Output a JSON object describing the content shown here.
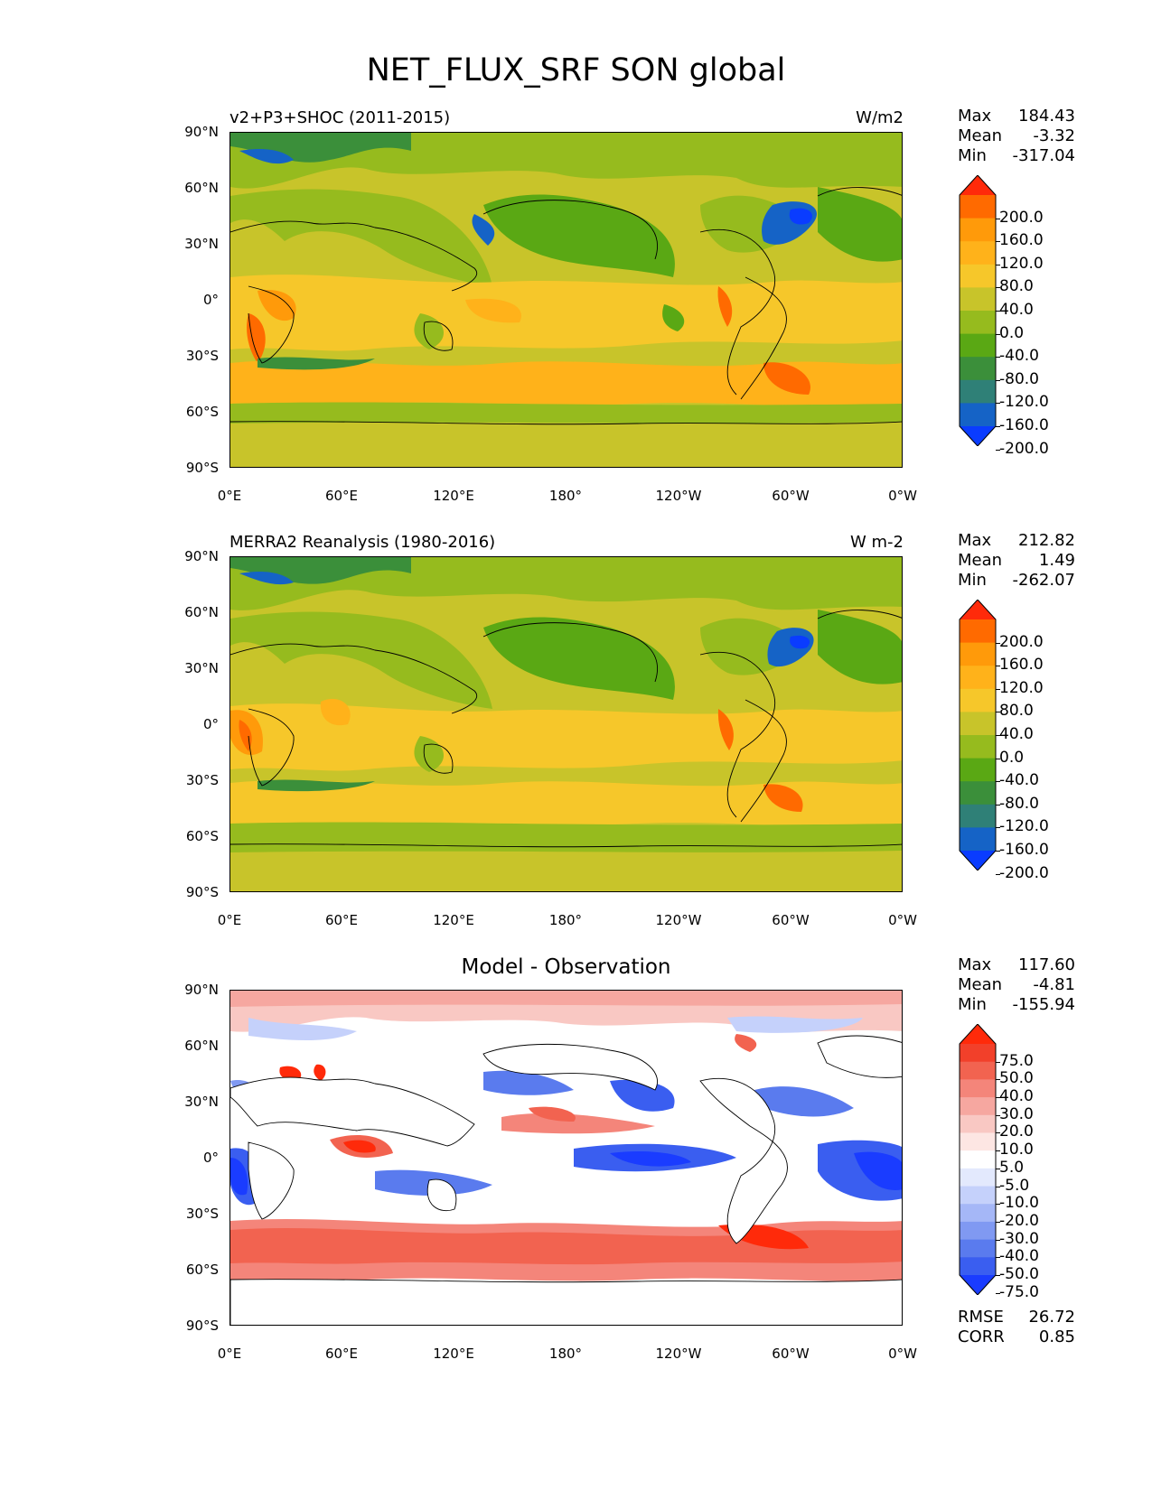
{
  "title": "NET_FLUX_SRF SON global",
  "axes": {
    "y_ticks": [
      "90°N",
      "60°N",
      "30°N",
      "0°",
      "30°S",
      "60°S",
      "90°S"
    ],
    "x_ticks": [
      "0°E",
      "60°E",
      "120°E",
      "180°",
      "120°W",
      "60°W",
      "0°W"
    ]
  },
  "panels": [
    {
      "title": "v2+P3+SHOC (2011-2015)",
      "units": "W/m2",
      "stats": {
        "max_label": "Max",
        "max": "184.43",
        "mean_label": "Mean",
        "mean": "-3.32",
        "min_label": "Min",
        "min": "-317.04"
      },
      "colorbar": {
        "labels": [
          "200.0",
          "160.0",
          "120.0",
          "80.0",
          "40.0",
          "0.0",
          "-40.0",
          "-80.0",
          "-120.0",
          "-160.0",
          "-200.0"
        ],
        "colors": [
          "#ff2a0a",
          "#ff6a00",
          "#ff9a0a",
          "#ffb21a",
          "#f6c72a",
          "#c8c42a",
          "#96bb1e",
          "#5aa814",
          "#3b8f3a",
          "#2f8077",
          "#1563c6",
          "#0a3cff"
        ]
      }
    },
    {
      "title": "MERRA2 Reanalysis (1980-2016)",
      "units": "W m-2",
      "stats": {
        "max_label": "Max",
        "max": "212.82",
        "mean_label": "Mean",
        "mean": "1.49",
        "min_label": "Min",
        "min": "-262.07"
      },
      "colorbar": {
        "labels": [
          "200.0",
          "160.0",
          "120.0",
          "80.0",
          "40.0",
          "0.0",
          "-40.0",
          "-80.0",
          "-120.0",
          "-160.0",
          "-200.0"
        ],
        "colors": [
          "#ff2a0a",
          "#ff6a00",
          "#ff9a0a",
          "#ffb21a",
          "#f6c72a",
          "#c8c42a",
          "#96bb1e",
          "#5aa814",
          "#3b8f3a",
          "#2f8077",
          "#1563c6",
          "#0a3cff"
        ]
      }
    },
    {
      "title": "Model - Observation",
      "units": "",
      "stats": {
        "max_label": "Max",
        "max": "117.60",
        "mean_label": "Mean",
        "mean": "-4.81",
        "min_label": "Min",
        "min": "-155.94"
      },
      "colorbar": {
        "labels": [
          "75.0",
          "50.0",
          "40.0",
          "30.0",
          "20.0",
          "10.0",
          "5.0",
          "-5.0",
          "-10.0",
          "-20.0",
          "-30.0",
          "-40.0",
          "-50.0",
          "-75.0"
        ],
        "colors": [
          "#ff2a0a",
          "#f2402a",
          "#f26350",
          "#f4857a",
          "#f6a7a0",
          "#f9c8c3",
          "#fde6e3",
          "#ffffff",
          "#e3e9fd",
          "#c5d1fb",
          "#a5b7f7",
          "#8099f2",
          "#5a7bee",
          "#3a5ef0",
          "#1a3cff"
        ]
      },
      "metrics": {
        "rmse_label": "RMSE",
        "rmse": "26.72",
        "corr_label": "CORR",
        "corr": "0.85"
      }
    }
  ],
  "chart_data": [
    {
      "type": "heatmap",
      "title": "v2+P3+SHOC (2011-2015)",
      "field": "NET_FLUX_SRF",
      "season": "SON",
      "units": "W/m2",
      "xlim": [
        0,
        360
      ],
      "ylim": [
        -90,
        90
      ],
      "color_levels": [
        -200,
        -160,
        -120,
        -80,
        -40,
        0,
        40,
        80,
        120,
        160,
        200
      ],
      "max": 184.43,
      "mean": -3.32,
      "min": -317.04
    },
    {
      "type": "heatmap",
      "title": "MERRA2 Reanalysis (1980-2016)",
      "field": "NET_FLUX_SRF",
      "season": "SON",
      "units": "W m-2",
      "xlim": [
        0,
        360
      ],
      "ylim": [
        -90,
        90
      ],
      "color_levels": [
        -200,
        -160,
        -120,
        -80,
        -40,
        0,
        40,
        80,
        120,
        160,
        200
      ],
      "max": 212.82,
      "mean": 1.49,
      "min": -262.07
    },
    {
      "type": "heatmap",
      "title": "Model - Observation",
      "field": "NET_FLUX_SRF",
      "season": "SON",
      "xlim": [
        0,
        360
      ],
      "ylim": [
        -90,
        90
      ],
      "color_levels": [
        -75,
        -50,
        -40,
        -30,
        -20,
        -10,
        -5,
        5,
        10,
        20,
        30,
        40,
        50,
        75
      ],
      "max": 117.6,
      "mean": -4.81,
      "min": -155.94,
      "rmse": 26.72,
      "corr": 0.85
    }
  ]
}
